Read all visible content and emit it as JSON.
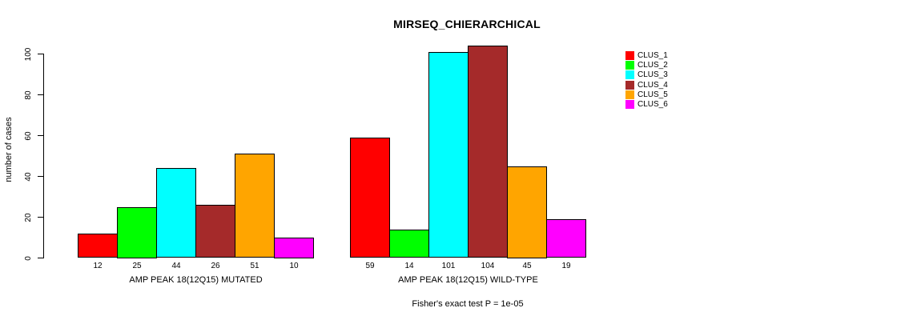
{
  "chart_data": {
    "type": "bar",
    "title": "MIRSEQ_CHIERARCHICAL",
    "ylabel": "number of cases",
    "xlabel": "",
    "ylim": [
      0,
      100
    ],
    "yticks": [
      0,
      20,
      40,
      60,
      80,
      100
    ],
    "grid": false,
    "legend_position": "right",
    "legend": [
      {
        "label": "CLUS_1",
        "color": "#FF0000"
      },
      {
        "label": "CLUS_2",
        "color": "#00FF00"
      },
      {
        "label": "CLUS_3",
        "color": "#00FFFF"
      },
      {
        "label": "CLUS_4",
        "color": "#A52A2A"
      },
      {
        "label": "CLUS_5",
        "color": "#FFA500"
      },
      {
        "label": "CLUS_6",
        "color": "#FF00FF"
      }
    ],
    "groups": [
      {
        "label": "AMP PEAK 18(12Q15) MUTATED",
        "values": [
          12,
          25,
          44,
          26,
          51,
          10
        ]
      },
      {
        "label": "AMP PEAK 18(12Q15) WILD-TYPE",
        "values": [
          59,
          14,
          101,
          104,
          45,
          19
        ]
      }
    ],
    "annotation": "Fisher's exact test P = 1e-05"
  }
}
